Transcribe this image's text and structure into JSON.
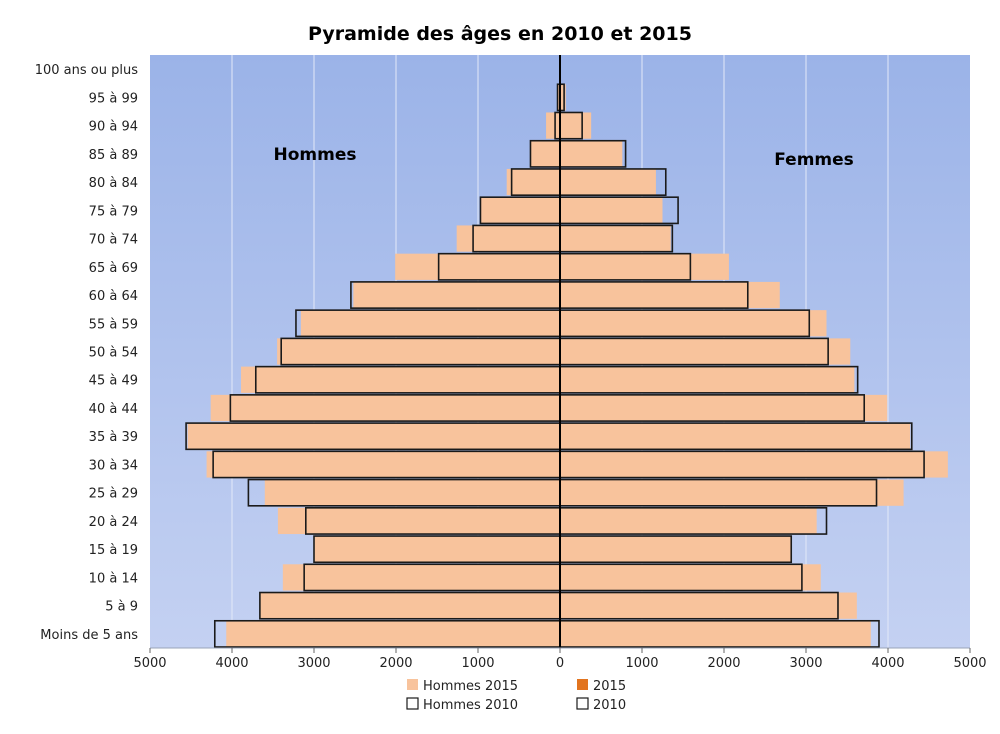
{
  "chart_data": {
    "type": "bar",
    "orientation": "horizontal",
    "layout": "population-pyramid",
    "title": "Pyramide des âges en 2010 et 2015",
    "categories": [
      "Moins de 5 ans",
      "5 à 9",
      "10 à 14",
      "15 à 19",
      "20 à 24",
      "25 à 29",
      "30 à 34",
      "35 à 39",
      "40 à 44",
      "45 à 49",
      "50 à 54",
      "55 à 59",
      "60 à 64",
      "65 à 69",
      "70 à 74",
      "75 à 79",
      "80 à 84",
      "85 à 89",
      "90 à 94",
      "95 à 99",
      "100 ans ou plus"
    ],
    "series": [
      {
        "name": "Hommes 2015",
        "side": "left",
        "style": "filled",
        "values": [
          4070,
          3660,
          3380,
          3000,
          3440,
          3600,
          4310,
          4540,
          4260,
          3890,
          3450,
          3160,
          2520,
          2010,
          1260,
          970,
          650,
          360,
          170,
          30,
          0
        ]
      },
      {
        "name": "2015",
        "side": "right",
        "style": "filled",
        "values": [
          3790,
          3620,
          3180,
          2820,
          3130,
          4190,
          4730,
          4270,
          3990,
          3590,
          3540,
          3250,
          2680,
          2060,
          1350,
          1250,
          1170,
          760,
          380,
          70,
          0
        ]
      },
      {
        "name": "Hommes 2010",
        "side": "left",
        "style": "outline",
        "values": [
          4210,
          3660,
          3120,
          3000,
          3100,
          3800,
          4230,
          4560,
          4020,
          3710,
          3400,
          3220,
          2550,
          1480,
          1060,
          970,
          590,
          360,
          60,
          30,
          0
        ]
      },
      {
        "name": "2010",
        "side": "right",
        "style": "outline",
        "values": [
          3890,
          3390,
          2950,
          2820,
          3250,
          3860,
          4440,
          4290,
          3710,
          3630,
          3270,
          3040,
          2290,
          1590,
          1370,
          1440,
          1290,
          800,
          270,
          50,
          0
        ]
      }
    ],
    "annotations": [
      "Hommes",
      "Femmes"
    ],
    "xlim": [
      -5000,
      5000
    ],
    "x_ticks": [
      -5000,
      -4000,
      -3000,
      -2000,
      -1000,
      0,
      1000,
      2000,
      3000,
      4000,
      5000
    ],
    "x_tick_labels": [
      "5000",
      "4000",
      "3000",
      "2000",
      "1000",
      "0",
      "1000",
      "2000",
      "3000",
      "4000",
      "5000"
    ],
    "grid": true,
    "legend_position": "bottom",
    "colors": {
      "fill_men_2015": "#f8c39c",
      "legend_swatch_2015": "#e2741f",
      "outline": "#1a1a1a",
      "plot_background_top": "#9bb3e8",
      "plot_background_bottom": "#c4d1f2",
      "gridline": "#e3e9f8",
      "axis": "#000000"
    }
  }
}
